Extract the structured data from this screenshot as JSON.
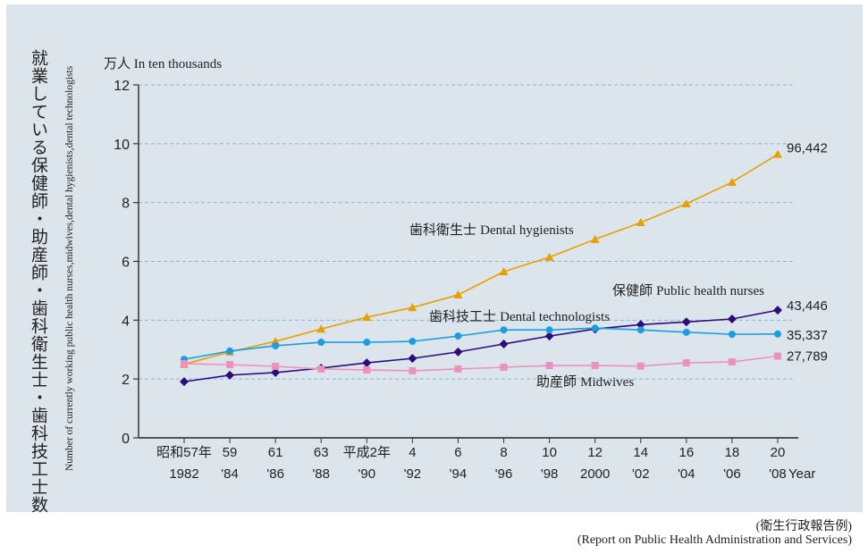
{
  "chart_data": {
    "type": "line",
    "title": "",
    "ylabel_jp": "就業している保健師・助産師・歯科衛生士・歯科技工士数",
    "ylabel_en": "Number of currently working public health nurses,midwives,dental hygienists,dental technologists",
    "unit_label": "万人 In ten thousands",
    "xlabel": "Year",
    "ylim": [
      0,
      12
    ],
    "yticks": [
      0,
      2,
      4,
      6,
      8,
      10,
      12
    ],
    "grid": true,
    "categories_jp": [
      "昭和57年",
      "59",
      "61",
      "63",
      "平成2年",
      "4",
      "6",
      "8",
      "10",
      "12",
      "14",
      "16",
      "18",
      "20"
    ],
    "categories": [
      "1982",
      "'84",
      "'86",
      "'88",
      "'90",
      "'92",
      "'94",
      "'96",
      "'98",
      "2000",
      "'02",
      "'04",
      "'06",
      "'08"
    ],
    "series": [
      {
        "name": "Dental hygienists",
        "name_jp": "歯科衛生士",
        "color": "#e8a000",
        "marker": "triangle",
        "values": [
          2.5,
          2.92,
          3.28,
          3.7,
          4.1,
          4.43,
          4.86,
          5.65,
          6.14,
          6.75,
          7.32,
          7.96,
          8.69,
          9.64
        ],
        "end_label": "96,442"
      },
      {
        "name": "Public health nurses",
        "name_jp": "保健師",
        "color": "#2e0a7a",
        "marker": "diamond",
        "values": [
          1.91,
          2.13,
          2.22,
          2.37,
          2.55,
          2.7,
          2.92,
          3.19,
          3.46,
          3.7,
          3.85,
          3.94,
          4.04,
          4.34
        ],
        "end_label": "43,446"
      },
      {
        "name": "Dental technologists",
        "name_jp": "歯科技工士",
        "color": "#1a9ee0",
        "marker": "circle",
        "values": [
          2.67,
          2.95,
          3.13,
          3.25,
          3.25,
          3.28,
          3.46,
          3.67,
          3.67,
          3.73,
          3.67,
          3.59,
          3.52,
          3.53
        ],
        "end_label": "35,337"
      },
      {
        "name": "Midwives",
        "name_jp": "助産師",
        "color": "#ec90c0",
        "marker": "square",
        "values": [
          2.52,
          2.49,
          2.43,
          2.34,
          2.31,
          2.28,
          2.34,
          2.4,
          2.46,
          2.46,
          2.44,
          2.55,
          2.58,
          2.78
        ],
        "end_label": "27,789"
      }
    ]
  },
  "source_jp": "(衛生行政報告例)",
  "source_en": "(Report on Public Health Administration and Services)"
}
